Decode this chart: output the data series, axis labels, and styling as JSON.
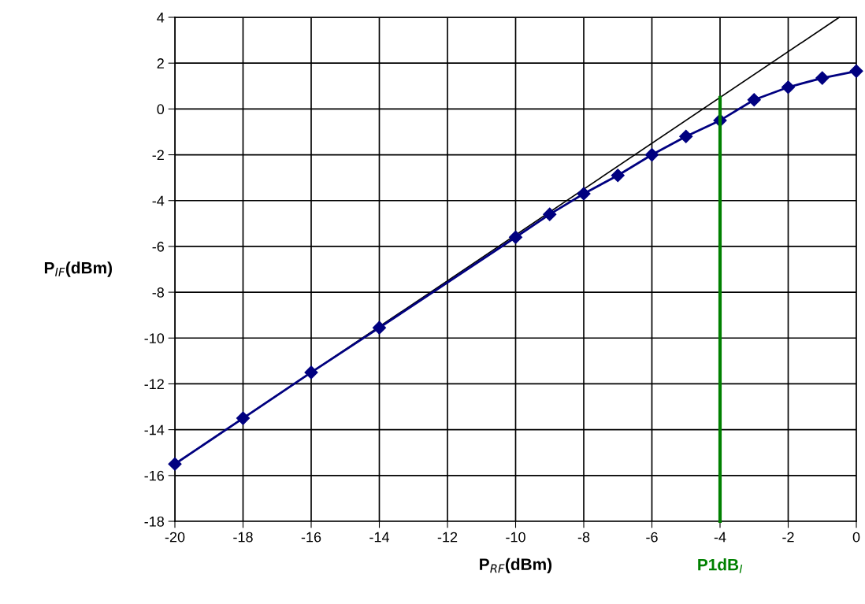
{
  "chart_data": {
    "type": "line",
    "xlabel": "P$_{RF}$(dBm)",
    "ylabel": "P$_{IF}$(dBm)",
    "xlim": [
      -20,
      0
    ],
    "xticks": [
      -20,
      -18,
      -16,
      -14,
      -12,
      -10,
      -8,
      -6,
      -4,
      -2,
      0
    ],
    "ylim": [
      -18,
      4
    ],
    "yticks": [
      -18,
      -16,
      -14,
      -12,
      -10,
      -8,
      -6,
      -4,
      -2,
      0,
      2,
      4
    ],
    "grid": true,
    "series": [
      {
        "color": "#000000",
        "marker": "none",
        "x": [
          -20,
          -0.5
        ],
        "values": [
          -15.5,
          4
        ]
      },
      {
        "color": "#000080",
        "marker": "diamond",
        "x": [
          -20,
          -18,
          -16,
          -14,
          -10,
          -9,
          -8,
          -7,
          -6,
          -5,
          -4,
          -3,
          -2,
          -1,
          0
        ],
        "values": [
          -15.5,
          -13.5,
          -11.5,
          -9.55,
          -5.6,
          -4.6,
          -3.7,
          -2.9,
          -2.0,
          -1.2,
          -0.5,
          0.4,
          0.95,
          1.35,
          1.65
        ]
      },
      {
        "name": "P1dB$_{I}$",
        "color": "#008000",
        "marker": "none",
        "x": [
          -4,
          -4
        ],
        "values": [
          -18,
          0.5
        ]
      }
    ]
  }
}
